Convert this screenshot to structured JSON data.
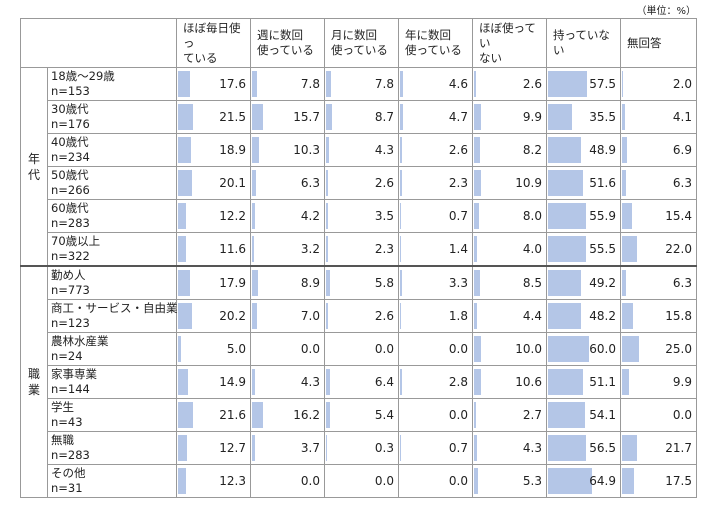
{
  "unit_note": "（単位：%）",
  "chart_data": {
    "type": "table",
    "columns": [
      "ほぼ毎日使っ\nている",
      "週に数回\n使っている",
      "月に数回\n使っている",
      "年に数回\n使っている",
      "ほぼ使ってい\nない",
      "持っていない",
      "無回答"
    ],
    "groups": [
      {
        "name": "年代",
        "rows": [
          {
            "label": "18歳～29歳",
            "n": "n=153",
            "values": [
              17.6,
              7.8,
              7.8,
              4.6,
              2.6,
              57.5,
              2.0
            ]
          },
          {
            "label": "30歳代",
            "n": "n=176",
            "values": [
              21.5,
              15.7,
              8.7,
              4.7,
              9.9,
              35.5,
              4.1
            ]
          },
          {
            "label": "40歳代",
            "n": "n=234",
            "values": [
              18.9,
              10.3,
              4.3,
              2.6,
              8.2,
              48.9,
              6.9
            ]
          },
          {
            "label": "50歳代",
            "n": "n=266",
            "values": [
              20.1,
              6.3,
              2.6,
              2.3,
              10.9,
              51.6,
              6.3
            ]
          },
          {
            "label": "60歳代",
            "n": "n=283",
            "values": [
              12.2,
              4.2,
              3.5,
              0.7,
              8.0,
              55.9,
              15.4
            ]
          },
          {
            "label": "70歳以上",
            "n": "n=322",
            "values": [
              11.6,
              3.2,
              2.3,
              1.4,
              4.0,
              55.5,
              22.0
            ]
          }
        ]
      },
      {
        "name": "職業",
        "rows": [
          {
            "label": "勤め人",
            "n": "n=773",
            "values": [
              17.9,
              8.9,
              5.8,
              3.3,
              8.5,
              49.2,
              6.3
            ]
          },
          {
            "label": "商工・サービス・自由業",
            "n": "n=123",
            "values": [
              20.2,
              7.0,
              2.6,
              1.8,
              4.4,
              48.2,
              15.8
            ]
          },
          {
            "label": "農林水産業",
            "n": "n=24",
            "values": [
              5.0,
              0.0,
              0.0,
              0.0,
              10.0,
              60.0,
              25.0
            ]
          },
          {
            "label": "家事専業",
            "n": "n=144",
            "values": [
              14.9,
              4.3,
              6.4,
              2.8,
              10.6,
              51.1,
              9.9
            ]
          },
          {
            "label": "学生",
            "n": "n=43",
            "values": [
              21.6,
              16.2,
              5.4,
              0.0,
              2.7,
              54.1,
              0.0
            ]
          },
          {
            "label": "無職",
            "n": "n=283",
            "values": [
              12.7,
              3.7,
              0.3,
              0.7,
              4.3,
              56.5,
              21.7
            ]
          },
          {
            "label": "その他",
            "n": "n=31",
            "values": [
              12.3,
              0.0,
              0.0,
              0.0,
              5.3,
              64.9,
              17.5
            ]
          }
        ]
      }
    ],
    "bar_color": "#b4c6e7",
    "value_max": 100
  }
}
